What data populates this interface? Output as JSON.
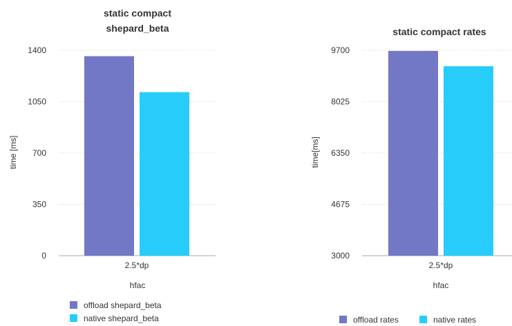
{
  "colors": {
    "offload": "#7278c5",
    "native": "#27ccfa",
    "text": "#333333",
    "grid": "#cfcfcf"
  },
  "chart_data": [
    {
      "type": "bar",
      "title": [
        "static compact",
        "shepard_beta"
      ],
      "xlabel": "hfac",
      "ylabel": "time [ms]",
      "categories": [
        "2.5*dp"
      ],
      "yticks": [
        0,
        350,
        700,
        1050,
        1400
      ],
      "ylim": [
        0,
        1400
      ],
      "grid": true,
      "legend_position": "bottom-left-stacked",
      "series": [
        {
          "name": "offload shepard_beta",
          "values": [
            1360
          ],
          "color": "#7278c5"
        },
        {
          "name": "native shepard_beta",
          "values": [
            1115
          ],
          "color": "#27ccfa"
        }
      ]
    },
    {
      "type": "bar",
      "title": [
        "static compact rates"
      ],
      "xlabel": "hfac",
      "ylabel": "time[ms]",
      "categories": [
        "2.5*dp"
      ],
      "yticks": [
        3000,
        4675,
        6350,
        8025,
        9700
      ],
      "ylim": [
        3000,
        9700
      ],
      "grid": true,
      "legend_position": "bottom-inline",
      "series": [
        {
          "name": "offload rates",
          "values": [
            9680
          ],
          "color": "#7278c5"
        },
        {
          "name": "native rates",
          "values": [
            9180
          ],
          "color": "#27ccfa"
        }
      ]
    }
  ]
}
